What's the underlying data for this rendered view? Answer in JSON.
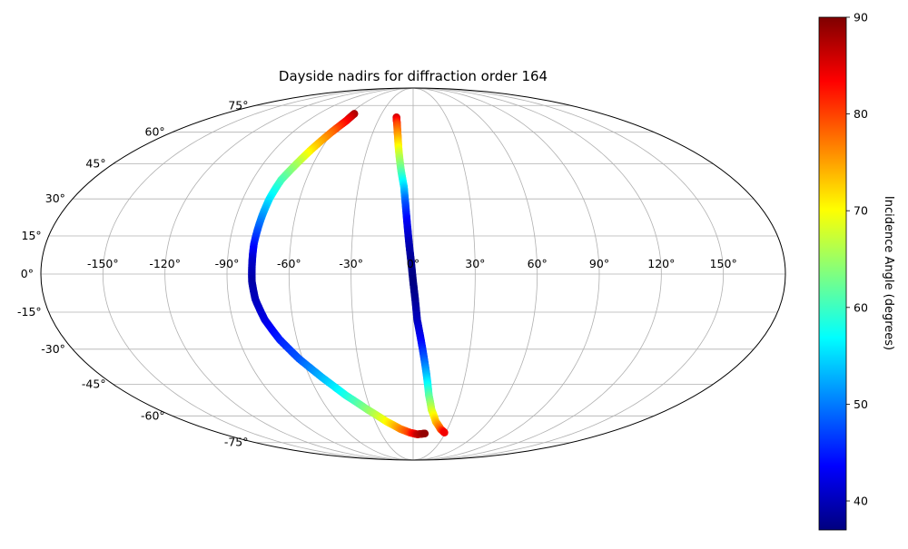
{
  "chart_data": {
    "type": "scatter",
    "projection": "mollweide",
    "title": "Dayside nadirs for diffraction order 164",
    "grid": true,
    "longitude_ticks": [
      -150,
      -120,
      -90,
      -60,
      -30,
      0,
      30,
      60,
      90,
      120,
      150
    ],
    "longitude_tick_labels": [
      "-150°",
      "-120°",
      "-90°",
      "-60°",
      "-30°",
      "0°",
      "30°",
      "60°",
      "90°",
      "120°",
      "150°"
    ],
    "latitude_ticks": [
      -75,
      -60,
      -45,
      -30,
      -15,
      0,
      15,
      30,
      45,
      60,
      75
    ],
    "latitude_tick_labels": [
      "-75°",
      "-60°",
      "-45°",
      "-30°",
      "-15°",
      "0°",
      "15°",
      "30°",
      "45°",
      "60°",
      "75°"
    ],
    "colorbar": {
      "label": "Incidence Angle (degrees)",
      "colormap": "jet",
      "range": [
        37,
        90
      ],
      "ticks": [
        40,
        50,
        60,
        70,
        80,
        90
      ],
      "tick_labels": [
        "40",
        "50",
        "60",
        "70",
        "80",
        "90"
      ]
    },
    "series": [
      {
        "points": [
          {
            "lon": -56,
            "lat": 70,
            "c": 88
          },
          {
            "lon": -57,
            "lat": 66,
            "c": 84
          },
          {
            "lon": -61,
            "lat": 60,
            "c": 78
          },
          {
            "lon": -66,
            "lat": 52,
            "c": 72
          },
          {
            "lon": -70,
            "lat": 45,
            "c": 66
          },
          {
            "lon": -74,
            "lat": 38,
            "c": 61
          },
          {
            "lon": -76,
            "lat": 30,
            "c": 56
          },
          {
            "lon": -77,
            "lat": 22,
            "c": 51
          },
          {
            "lon": -78,
            "lat": 12,
            "c": 45
          },
          {
            "lon": -78,
            "lat": 5,
            "c": 41
          },
          {
            "lon": -78,
            "lat": -3,
            "c": 39
          },
          {
            "lon": -77,
            "lat": -10,
            "c": 40
          },
          {
            "lon": -74,
            "lat": -18,
            "c": 42
          },
          {
            "lon": -69,
            "lat": -26,
            "c": 45
          },
          {
            "lon": -62,
            "lat": -34,
            "c": 48
          },
          {
            "lon": -53,
            "lat": -42,
            "c": 53
          },
          {
            "lon": -43,
            "lat": -50,
            "c": 58
          },
          {
            "lon": -32,
            "lat": -57,
            "c": 64
          },
          {
            "lon": -21,
            "lat": -63,
            "c": 70
          },
          {
            "lon": -11,
            "lat": -67,
            "c": 76
          },
          {
            "lon": -3,
            "lat": -69,
            "c": 80
          },
          {
            "lon": 4,
            "lat": -70,
            "c": 86
          },
          {
            "lon": 11,
            "lat": -69.5,
            "c": 89
          }
        ]
      },
      {
        "points": [
          {
            "lon": -15,
            "lat": 68,
            "c": 86
          },
          {
            "lon": -13,
            "lat": 64,
            "c": 80
          },
          {
            "lon": -11,
            "lat": 58,
            "c": 75
          },
          {
            "lon": -9,
            "lat": 50,
            "c": 68
          },
          {
            "lon": -7,
            "lat": 42,
            "c": 62
          },
          {
            "lon": -5,
            "lat": 35,
            "c": 55
          },
          {
            "lon": -4,
            "lat": 28,
            "c": 48
          },
          {
            "lon": -3,
            "lat": 20,
            "c": 43
          },
          {
            "lon": -2,
            "lat": 12,
            "c": 40
          },
          {
            "lon": -1,
            "lat": 5,
            "c": 38
          },
          {
            "lon": 0,
            "lat": -3,
            "c": 37
          },
          {
            "lon": 1,
            "lat": -10,
            "c": 38
          },
          {
            "lon": 2,
            "lat": -18,
            "c": 40
          },
          {
            "lon": 4,
            "lat": -26,
            "c": 43
          },
          {
            "lon": 6,
            "lat": -34,
            "c": 48
          },
          {
            "lon": 8,
            "lat": -42,
            "c": 54
          },
          {
            "lon": 10,
            "lat": -50,
            "c": 61
          },
          {
            "lon": 13,
            "lat": -57,
            "c": 67
          },
          {
            "lon": 18,
            "lat": -63,
            "c": 73
          },
          {
            "lon": 24,
            "lat": -67,
            "c": 78
          },
          {
            "lon": 29,
            "lat": -69,
            "c": 84
          }
        ]
      }
    ]
  }
}
